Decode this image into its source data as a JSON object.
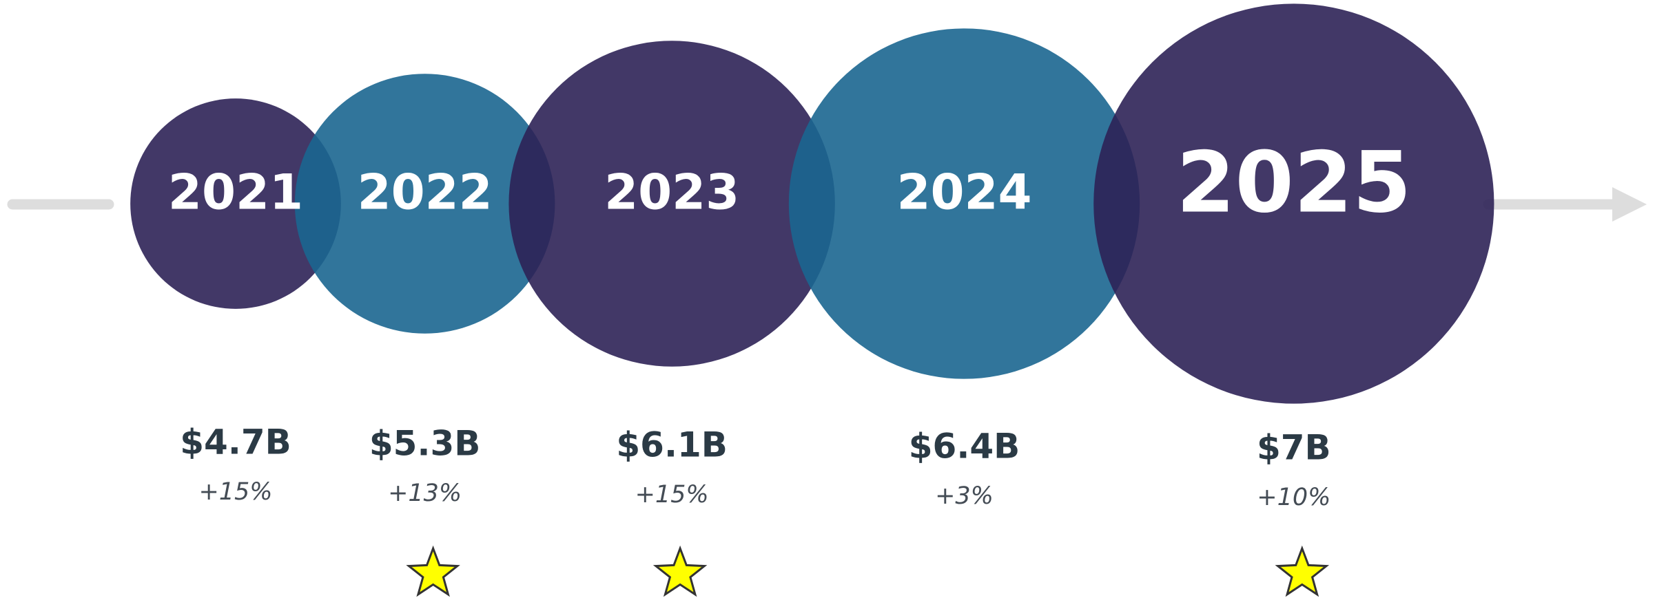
{
  "chart_data": {
    "type": "bubble",
    "categories": [
      "2021",
      "2022",
      "2023",
      "2024",
      "2025"
    ],
    "values": [
      4.7,
      5.3,
      6.1,
      6.4,
      7
    ],
    "value_labels": [
      "$4.7B",
      "$5.3B",
      "$6.1B",
      "$6.4B",
      "$7B"
    ],
    "growth": [
      15,
      13,
      15,
      3,
      10
    ],
    "growth_labels": [
      "+15%",
      "+13%",
      "+15%",
      "+3%",
      "+10%"
    ],
    "highlighted": [
      false,
      true,
      true,
      false,
      true
    ],
    "colors": [
      "#2d2256",
      "#1b6690",
      "#2d2256",
      "#1b6690",
      "#2d2256"
    ]
  }
}
